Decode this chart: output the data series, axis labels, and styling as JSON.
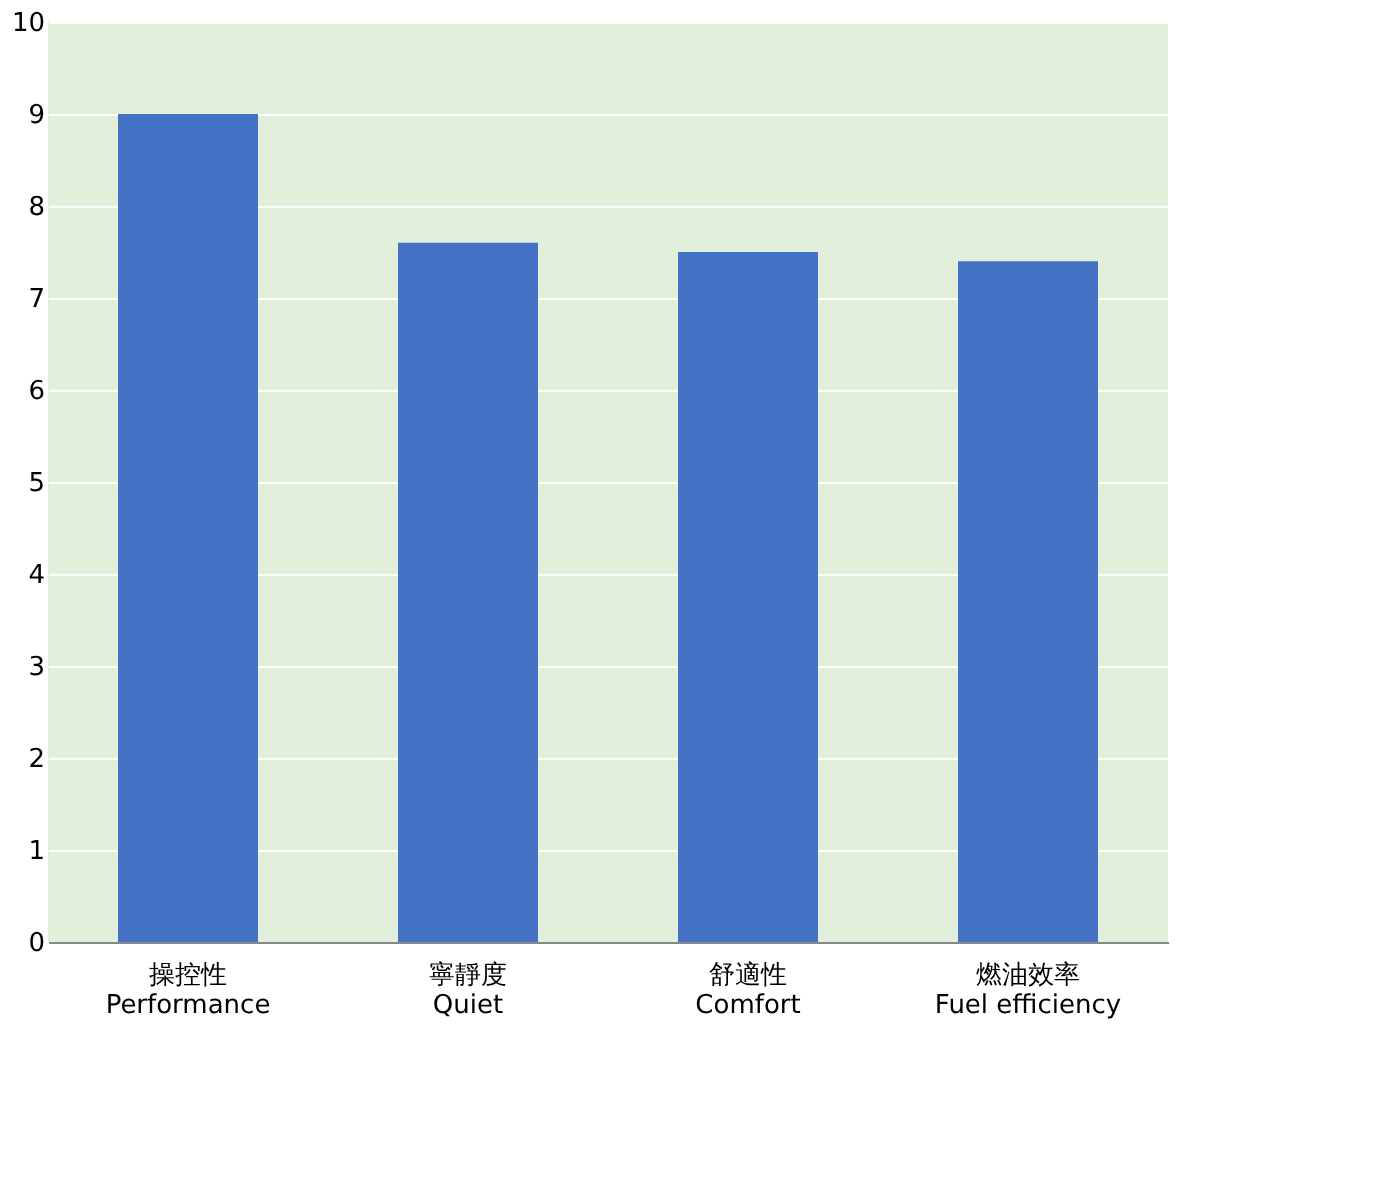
{
  "chart_data": {
    "type": "bar",
    "categories": [
      "操控性\nPerformance",
      "寧靜度\nQuiet",
      "舒適性\nComfort",
      "燃油效率\nFuel efficiency"
    ],
    "values": [
      9.0,
      7.6,
      7.5,
      7.4
    ],
    "color": "#4472c4",
    "ylim": [
      0,
      10
    ],
    "yticks": [
      0,
      1,
      2,
      3,
      4,
      5,
      6,
      7,
      8,
      9,
      10
    ],
    "grid": "y"
  }
}
